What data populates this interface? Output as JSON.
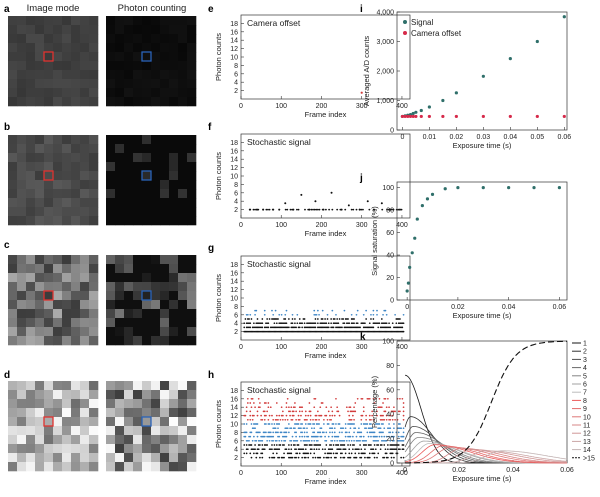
{
  "header": {
    "image_mode": "Image mode",
    "photon_counting": "Photon counting"
  },
  "panel_letters": {
    "a": "a",
    "b": "b",
    "c": "c",
    "d": "d",
    "e": "e",
    "f": "f",
    "g": "g",
    "h": "h",
    "i": "i",
    "j": "j",
    "k": "k"
  },
  "colors": {
    "image_roi": "#e0322f",
    "photon_roi": "#2a63b8",
    "signal": "#2f6f6a",
    "offset": "#d62a4a",
    "fg_dark": "#111111",
    "blue_pts": "#3e86c6",
    "red_pts": "#d23a3a"
  },
  "image_panels": [
    {
      "id": "a",
      "mode": "dark"
    },
    {
      "id": "b",
      "mode": "low"
    },
    {
      "id": "c",
      "mode": "mid"
    },
    {
      "id": "d",
      "mode": "high"
    }
  ],
  "chart_data": [
    {
      "id": "e",
      "type": "scatter",
      "title": "Camera offset",
      "xlabel": "Frame index",
      "ylabel": "Photon counts",
      "xlim": [
        0,
        420
      ],
      "ylim": [
        0,
        20
      ],
      "xticks": [
        0,
        100,
        200,
        300,
        400
      ],
      "yticks": [
        2,
        4,
        6,
        8,
        10,
        12,
        14,
        16,
        18
      ],
      "series": [
        {
          "values": [
            [
              300,
              1.5
            ]
          ]
        }
      ]
    },
    {
      "id": "f",
      "type": "scatter",
      "title": "Stochastic signal",
      "xlabel": "Frame index",
      "ylabel": "Photon counts",
      "xlim": [
        0,
        420
      ],
      "ylim": [
        0,
        20
      ],
      "xticks": [
        0,
        100,
        200,
        300,
        400
      ],
      "yticks": [
        2,
        4,
        6,
        8,
        10,
        12,
        14,
        16,
        18
      ],
      "series": [
        {
          "values": [
            [
              22,
              2
            ],
            [
              40,
              2
            ],
            [
              55,
              2
            ],
            [
              80,
              2
            ],
            [
              95,
              2
            ],
            [
              110,
              3.5
            ],
            [
              130,
              2
            ],
            [
              150,
              5.5
            ],
            [
              170,
              2
            ],
            [
              185,
              4
            ],
            [
              205,
              2
            ],
            [
              225,
              6
            ],
            [
              250,
              2
            ],
            [
              268,
              3
            ],
            [
              295,
              2
            ],
            [
              315,
              4
            ],
            [
              330,
              2
            ],
            [
              350,
              3.5
            ],
            [
              370,
              2
            ],
            [
              395,
              2
            ]
          ]
        }
      ]
    },
    {
      "id": "g",
      "type": "scatter",
      "title": "Stochastic signal",
      "xlabel": "Frame index",
      "ylabel": "Photon counts",
      "xlim": [
        0,
        420
      ],
      "ylim": [
        0,
        20
      ],
      "xticks": [
        0,
        100,
        200,
        300,
        400
      ],
      "yticks": [
        2,
        4,
        6,
        8,
        10,
        12,
        14,
        16,
        18
      ],
      "levels": [
        2,
        3,
        4,
        5,
        6,
        7
      ],
      "series": [
        {
          "density": [
            1.0,
            0.85,
            0.55,
            0.35,
            0.2,
            0.12
          ]
        }
      ]
    },
    {
      "id": "h",
      "type": "scatter",
      "title": "Stochastic signal",
      "xlabel": "Frame index",
      "ylabel": "Photon counts",
      "xlim": [
        0,
        420
      ],
      "ylim": [
        0,
        20
      ],
      "xticks": [
        0,
        100,
        200,
        300,
        400
      ],
      "yticks": [
        2,
        4,
        6,
        8,
        10,
        12,
        14,
        16,
        18
      ],
      "levels": [
        2,
        3,
        4,
        5,
        6,
        7,
        8,
        9,
        10,
        11,
        12,
        13,
        14,
        15,
        16
      ],
      "series": [
        {
          "density": [
            0.4,
            0.45,
            0.55,
            0.55,
            0.6,
            0.55,
            0.5,
            0.45,
            0.45,
            0.4,
            0.35,
            0.3,
            0.25,
            0.18,
            0.12
          ]
        }
      ]
    },
    {
      "id": "i",
      "type": "scatter",
      "xlabel": "Exposure time (s)",
      "ylabel": "Averaged A/D counts",
      "xlim": [
        -0.002,
        0.061
      ],
      "ylim": [
        0,
        4000
      ],
      "xticks": [
        0,
        0.01,
        0.02,
        0.03,
        0.04,
        0.05,
        0.06
      ],
      "xtick_labels": [
        "0",
        "0.01",
        "0.02",
        "0.03",
        "0.04",
        "0.05",
        "0.06"
      ],
      "yticks": [
        0,
        1000,
        2000,
        3000,
        4000
      ],
      "ytick_labels": [
        "0",
        "1,000",
        "2,000",
        "3,000",
        "4,000"
      ],
      "legend": "top-left",
      "series": [
        {
          "name": "Signal",
          "x": [
            0,
            0.001,
            0.002,
            0.003,
            0.004,
            0.005,
            0.007,
            0.01,
            0.015,
            0.02,
            0.03,
            0.04,
            0.05,
            0.06
          ],
          "values": [
            460,
            480,
            500,
            520,
            560,
            600,
            660,
            780,
            1000,
            1260,
            1820,
            2420,
            3000,
            3840
          ]
        },
        {
          "name": "Camera offset",
          "x": [
            0,
            0.001,
            0.002,
            0.003,
            0.004,
            0.005,
            0.007,
            0.01,
            0.015,
            0.02,
            0.03,
            0.04,
            0.05,
            0.06
          ],
          "values": [
            460,
            460,
            460,
            460,
            460,
            460,
            460,
            460,
            460,
            460,
            460,
            460,
            460,
            460
          ]
        }
      ]
    },
    {
      "id": "j",
      "type": "scatter",
      "xlabel": "Exposure time (s)",
      "ylabel": "Signal saturation (%)",
      "xlim": [
        -0.004,
        0.063
      ],
      "ylim": [
        0,
        105
      ],
      "xticks": [
        0,
        0.02,
        0.04,
        0.06
      ],
      "xtick_labels": [
        "0",
        "0.02",
        "0.04",
        "0.06"
      ],
      "yticks": [
        0,
        20,
        40,
        60,
        80,
        100
      ],
      "series": [
        {
          "x": [
            0,
            0.0005,
            0.001,
            0.002,
            0.003,
            0.004,
            0.006,
            0.008,
            0.01,
            0.015,
            0.02,
            0.03,
            0.04,
            0.05,
            0.06
          ],
          "values": [
            8,
            15,
            29,
            42,
            55,
            72,
            84,
            90,
            94,
            99,
            100,
            100,
            100,
            100,
            100
          ]
        }
      ]
    },
    {
      "id": "k",
      "type": "line",
      "xlabel": "Exposure time (s)",
      "ylabel": "Percentage (%)",
      "xlim": [
        -0.003,
        0.06
      ],
      "ylim": [
        0,
        100
      ],
      "xticks": [
        0,
        0.02,
        0.04,
        0.06
      ],
      "xtick_labels": [
        "0",
        "0.02",
        "0.04",
        "0.06"
      ],
      "yticks": [
        0,
        20,
        40,
        60,
        80,
        100
      ],
      "legend": "right",
      "series": [
        {
          "name": "1",
          "peak": [
            0.0,
            72
          ],
          "width": 0.006
        },
        {
          "name": "2",
          "peak": [
            0.002,
            38
          ],
          "width": 0.008
        },
        {
          "name": "3",
          "peak": [
            0.003,
            30
          ],
          "width": 0.009
        },
        {
          "name": "4",
          "peak": [
            0.004,
            25
          ],
          "width": 0.01
        },
        {
          "name": "5",
          "peak": [
            0.005,
            21
          ],
          "width": 0.011
        },
        {
          "name": "6",
          "peak": [
            0.007,
            18
          ],
          "width": 0.012
        },
        {
          "name": "7",
          "peak": [
            0.009,
            16
          ],
          "width": 0.012
        },
        {
          "name": "8",
          "peak": [
            0.011,
            15
          ],
          "width": 0.013
        },
        {
          "name": "9",
          "peak": [
            0.014,
            14
          ],
          "width": 0.013
        },
        {
          "name": "10",
          "peak": [
            0.017,
            13
          ],
          "width": 0.014
        },
        {
          "name": "11",
          "peak": [
            0.021,
            12
          ],
          "width": 0.014
        },
        {
          "name": "12",
          "peak": [
            0.025,
            11
          ],
          "width": 0.015
        },
        {
          "name": "13",
          "peak": [
            0.03,
            10
          ],
          "width": 0.015
        },
        {
          "name": "14",
          "peak": [
            0.036,
            10
          ],
          "width": 0.016
        },
        {
          "name": ">15",
          "sigmoid": [
            0.032,
            0.0045
          ]
        }
      ]
    }
  ]
}
